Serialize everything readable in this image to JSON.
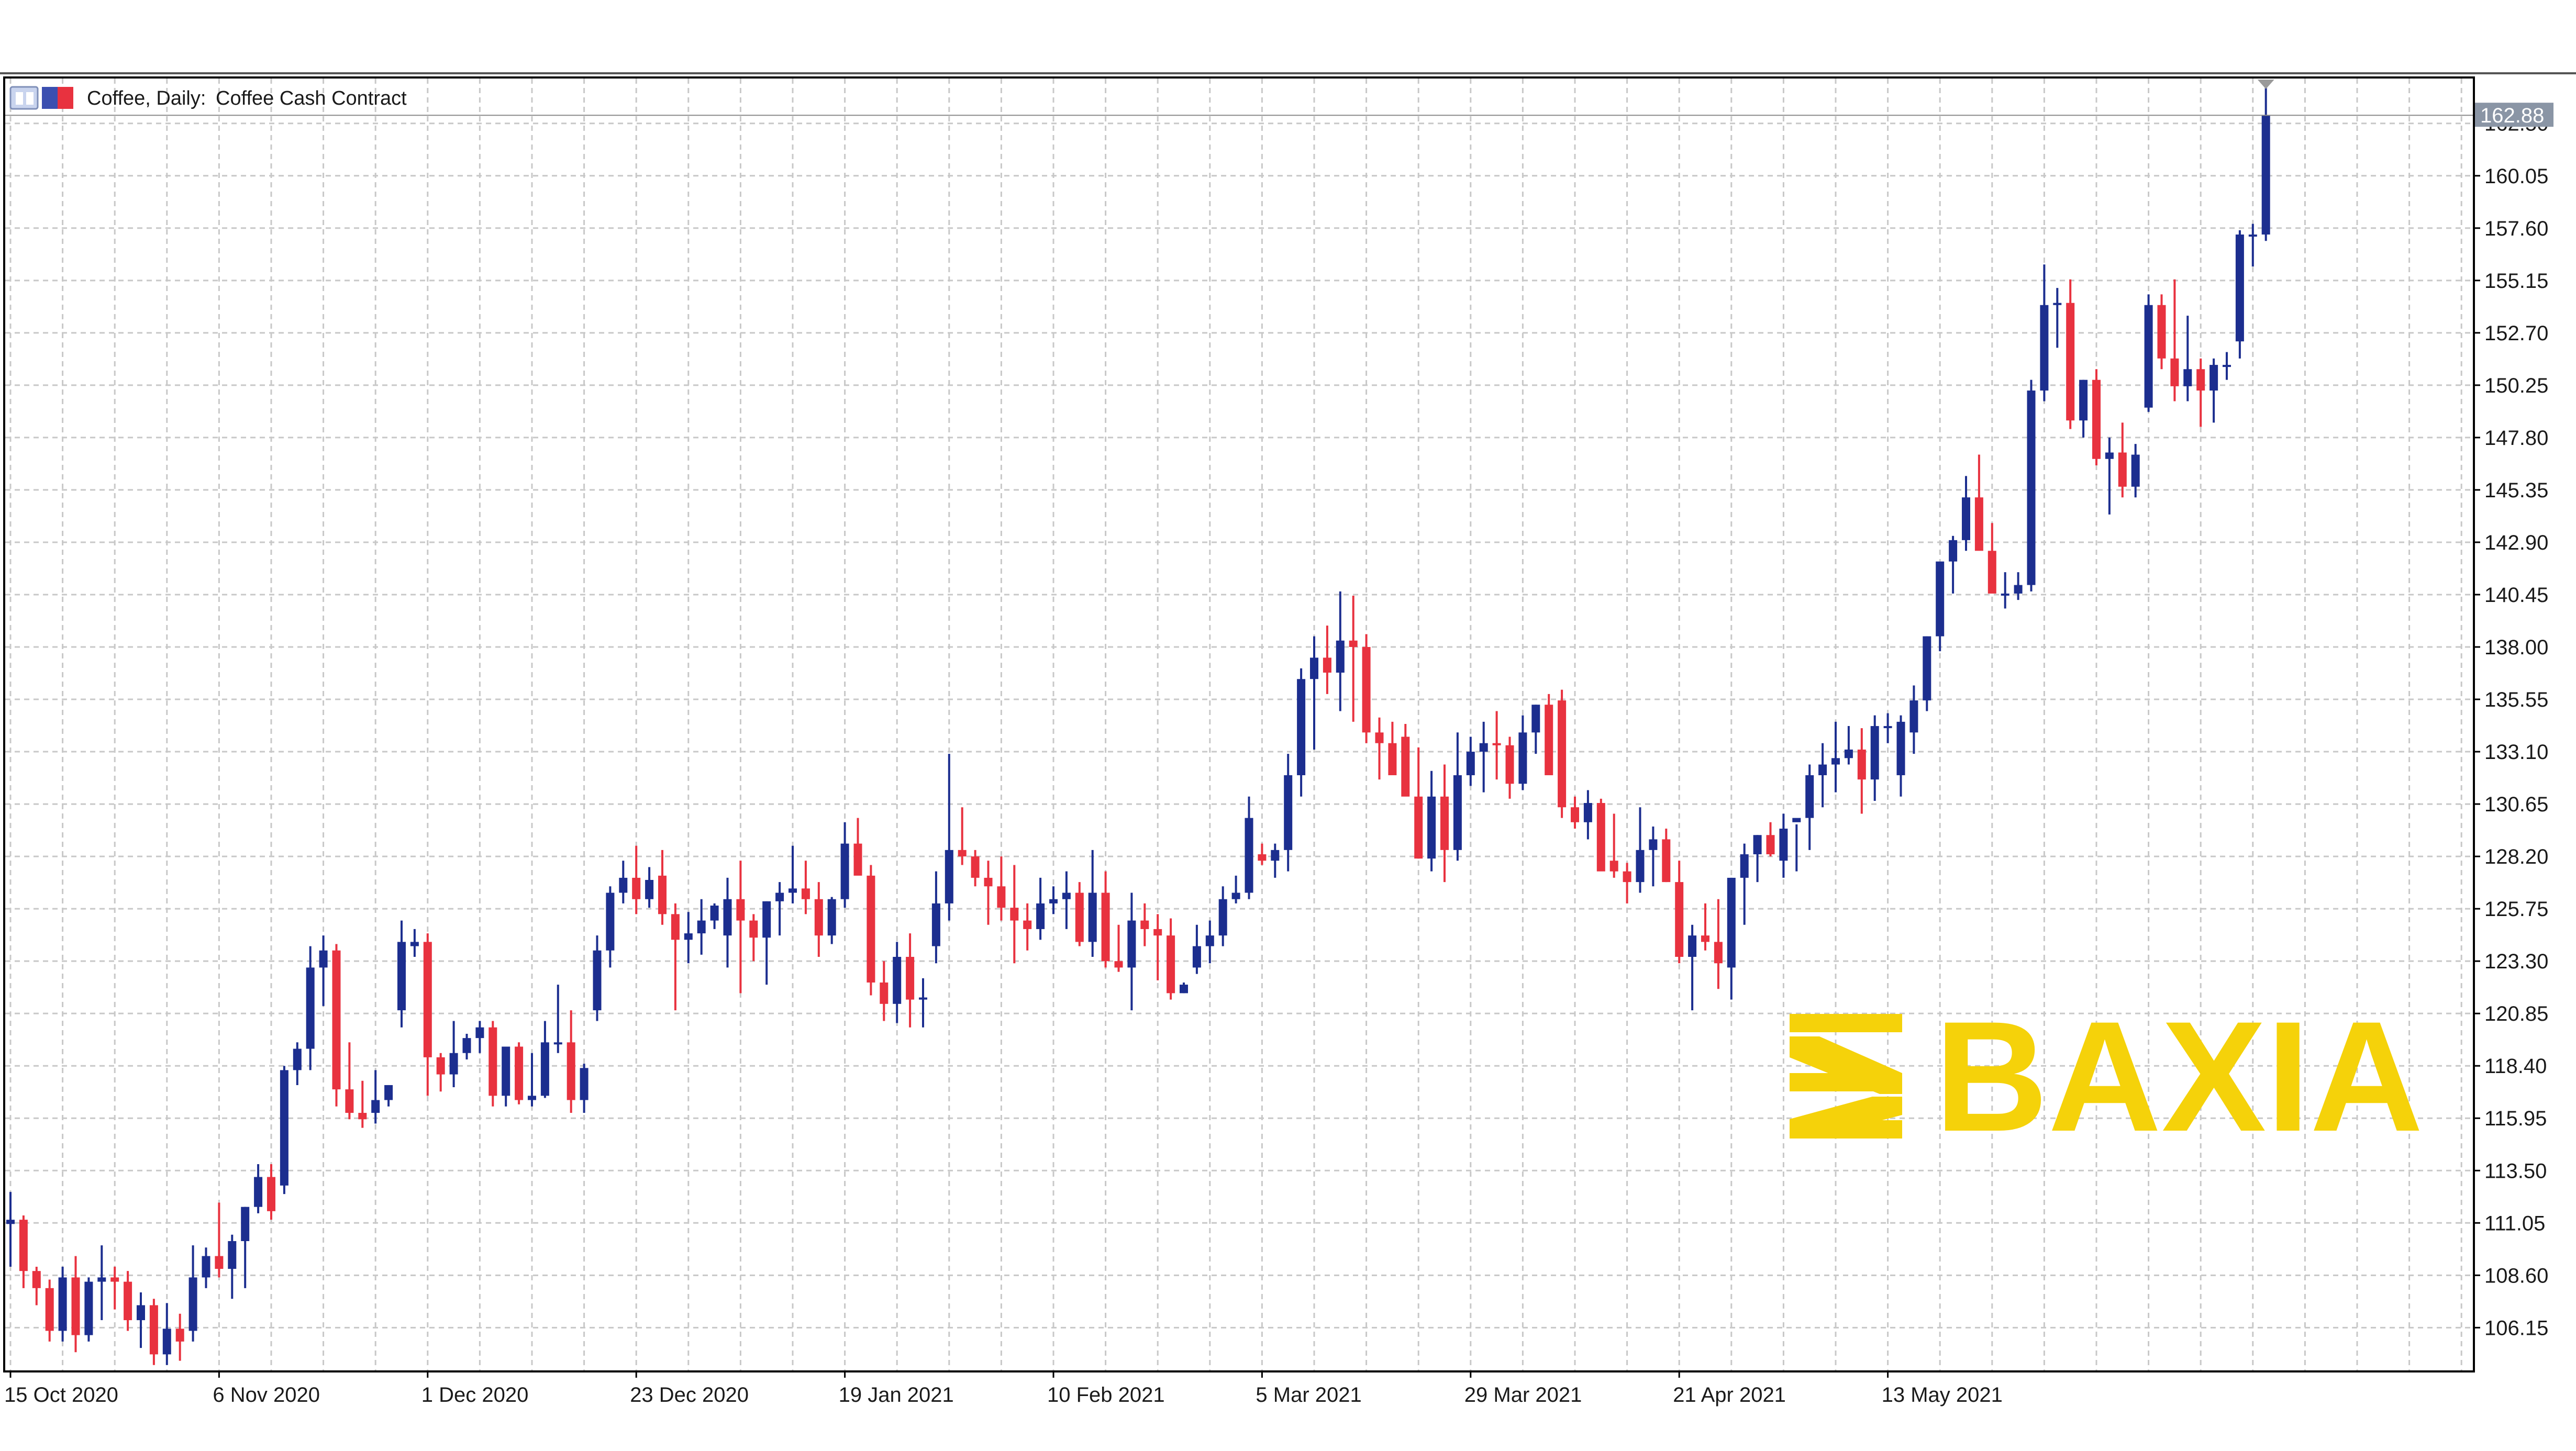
{
  "header": {
    "symbol": "Coffee, Daily:",
    "description": "Coffee Cash Contract"
  },
  "logo": {
    "text": "BAXIA",
    "color": "#f5d20a"
  },
  "colors": {
    "bull": "#1c2e8f",
    "bear": "#e8323f",
    "grid": "#c8c8c8",
    "frame": "#000000",
    "last_price_bg": "#8a95a5"
  },
  "chart_data": {
    "type": "candlestick",
    "title": "Coffee Cash Contract",
    "timeframe": "Daily",
    "ylim": [
      104.15,
      164.6
    ],
    "y_ticks": [
      "106.15",
      "108.60",
      "111.05",
      "113.50",
      "115.95",
      "118.40",
      "120.85",
      "123.30",
      "125.75",
      "128.20",
      "130.65",
      "133.10",
      "135.55",
      "138.00",
      "140.45",
      "142.90",
      "145.35",
      "147.80",
      "150.25",
      "152.70",
      "155.15",
      "157.60",
      "160.05",
      "162.50"
    ],
    "x_tick_labels": [
      "15 Oct 2020",
      "6 Nov 2020",
      "1 Dec 2020",
      "23 Dec 2020",
      "19 Jan 2021",
      "10 Feb 2021",
      "5 Mar 2021",
      "29 Mar 2021",
      "21 Apr 2021",
      "13 May 2021"
    ],
    "x_tick_bar_index": [
      0,
      16,
      32,
      48,
      64,
      80,
      96,
      112,
      128,
      144
    ],
    "last_price": "162.88",
    "grid": true,
    "bars": [
      [
        111.0,
        112.5,
        109.0,
        111.2
      ],
      [
        111.2,
        111.4,
        108.0,
        108.8
      ],
      [
        108.8,
        109.0,
        107.2,
        108.0
      ],
      [
        108.0,
        108.4,
        105.5,
        106.0
      ],
      [
        106.0,
        109.0,
        105.5,
        108.5
      ],
      [
        108.5,
        109.5,
        105.0,
        105.8
      ],
      [
        105.8,
        108.5,
        105.5,
        108.3
      ],
      [
        108.3,
        110.0,
        106.5,
        108.5
      ],
      [
        108.5,
        109.0,
        107.0,
        108.3
      ],
      [
        108.3,
        108.8,
        106.0,
        106.5
      ],
      [
        106.5,
        107.8,
        105.2,
        107.2
      ],
      [
        107.2,
        107.5,
        104.4,
        104.9
      ],
      [
        104.9,
        107.3,
        104.4,
        106.1
      ],
      [
        106.1,
        106.8,
        104.6,
        105.5
      ],
      [
        106.0,
        110.0,
        105.5,
        108.5
      ],
      [
        108.5,
        109.9,
        108.0,
        109.5
      ],
      [
        109.5,
        112.0,
        108.5,
        108.9
      ],
      [
        108.9,
        110.5,
        107.5,
        110.2
      ],
      [
        110.2,
        111.8,
        108.0,
        111.8
      ],
      [
        111.8,
        113.8,
        111.5,
        113.2
      ],
      [
        113.2,
        113.8,
        111.2,
        111.6
      ],
      [
        112.8,
        118.4,
        112.4,
        118.2
      ],
      [
        118.2,
        119.5,
        117.5,
        119.2
      ],
      [
        119.2,
        124.0,
        118.2,
        123.0
      ],
      [
        123.0,
        124.5,
        121.2,
        123.8
      ],
      [
        123.8,
        124.1,
        116.5,
        117.3
      ],
      [
        117.3,
        119.5,
        115.9,
        116.2
      ],
      [
        116.2,
        117.7,
        115.5,
        115.9
      ],
      [
        116.2,
        118.2,
        115.7,
        116.8
      ],
      [
        116.8,
        117.5,
        116.5,
        117.5
      ],
      [
        121.0,
        125.2,
        120.2,
        124.2
      ],
      [
        124.0,
        124.8,
        123.5,
        124.2
      ],
      [
        124.2,
        124.6,
        117.0,
        118.8
      ],
      [
        118.8,
        119.0,
        117.2,
        118.0
      ],
      [
        118.0,
        120.5,
        117.4,
        119.0
      ],
      [
        119.0,
        119.9,
        118.7,
        119.7
      ],
      [
        119.7,
        120.5,
        119.0,
        120.2
      ],
      [
        120.2,
        120.5,
        116.5,
        117.0
      ],
      [
        117.0,
        119.2,
        116.5,
        119.3
      ],
      [
        119.3,
        119.5,
        116.6,
        116.8
      ],
      [
        116.8,
        119.0,
        116.5,
        117.0
      ],
      [
        117.0,
        120.5,
        116.9,
        119.5
      ],
      [
        119.5,
        122.2,
        119.0,
        119.5
      ],
      [
        119.5,
        121.0,
        116.2,
        116.8
      ],
      [
        116.8,
        118.5,
        116.2,
        118.3
      ],
      [
        121.0,
        124.5,
        120.5,
        123.8
      ],
      [
        123.8,
        126.8,
        123.0,
        126.5
      ],
      [
        126.5,
        128.0,
        126.0,
        127.2
      ],
      [
        127.2,
        128.7,
        125.5,
        126.2
      ],
      [
        126.2,
        127.7,
        125.8,
        127.1
      ],
      [
        127.3,
        128.5,
        125.0,
        125.5
      ],
      [
        125.5,
        126.0,
        121.0,
        124.3
      ],
      [
        124.3,
        125.6,
        123.2,
        124.6
      ],
      [
        124.6,
        126.2,
        123.6,
        125.2
      ],
      [
        125.2,
        126.0,
        124.8,
        125.9
      ],
      [
        124.5,
        127.2,
        123.0,
        126.2
      ],
      [
        126.2,
        128.0,
        121.8,
        125.2
      ],
      [
        125.2,
        125.5,
        123.3,
        124.4
      ],
      [
        124.4,
        126.1,
        122.2,
        126.1
      ],
      [
        126.1,
        127.0,
        124.5,
        126.5
      ],
      [
        126.5,
        128.7,
        126.0,
        126.7
      ],
      [
        126.7,
        128.0,
        125.5,
        126.2
      ],
      [
        126.2,
        127.0,
        123.5,
        124.5
      ],
      [
        124.5,
        126.3,
        124.1,
        126.2
      ],
      [
        126.2,
        129.8,
        125.8,
        128.8
      ],
      [
        128.8,
        130.0,
        127.5,
        127.3
      ],
      [
        127.3,
        127.8,
        121.7,
        122.3
      ],
      [
        122.3,
        123.3,
        120.5,
        121.3
      ],
      [
        121.3,
        124.2,
        120.4,
        123.5
      ],
      [
        123.5,
        124.6,
        120.2,
        121.5
      ],
      [
        121.5,
        122.5,
        120.2,
        121.6
      ],
      [
        124.0,
        127.5,
        123.2,
        126.0
      ],
      [
        126.0,
        133.0,
        125.2,
        128.5
      ],
      [
        128.5,
        130.5,
        127.8,
        128.2
      ],
      [
        128.2,
        128.5,
        126.8,
        127.2
      ],
      [
        127.2,
        128.0,
        125.0,
        126.8
      ],
      [
        126.8,
        128.2,
        125.2,
        125.8
      ],
      [
        125.8,
        127.8,
        123.2,
        125.2
      ],
      [
        125.2,
        126.0,
        123.8,
        124.8
      ],
      [
        124.8,
        127.2,
        124.3,
        126.0
      ],
      [
        126.0,
        126.8,
        125.5,
        126.2
      ],
      [
        126.2,
        127.5,
        124.8,
        126.5
      ],
      [
        126.5,
        127.0,
        124.0,
        124.2
      ],
      [
        124.2,
        128.5,
        123.5,
        126.5
      ],
      [
        126.5,
        127.5,
        123.0,
        123.3
      ],
      [
        123.3,
        125.0,
        122.8,
        123.0
      ],
      [
        123.0,
        126.5,
        121.0,
        125.2
      ],
      [
        125.2,
        126.0,
        124.0,
        124.8
      ],
      [
        124.8,
        125.5,
        122.4,
        124.5
      ],
      [
        124.5,
        125.3,
        121.5,
        121.8
      ],
      [
        121.8,
        122.3,
        121.8,
        122.2
      ],
      [
        123.0,
        125.0,
        122.7,
        124.0
      ],
      [
        124.0,
        125.2,
        123.2,
        124.5
      ],
      [
        124.5,
        126.8,
        124.0,
        126.2
      ],
      [
        126.2,
        127.3,
        126.0,
        126.5
      ],
      [
        126.5,
        131.0,
        126.2,
        130.0
      ],
      [
        128.3,
        128.8,
        127.8,
        128.0
      ],
      [
        128.0,
        128.8,
        127.2,
        128.5
      ],
      [
        128.5,
        133.0,
        127.5,
        132.0
      ],
      [
        132.0,
        137.0,
        131.0,
        136.5
      ],
      [
        136.5,
        138.5,
        133.2,
        137.5
      ],
      [
        137.5,
        139.0,
        135.8,
        136.8
      ],
      [
        136.8,
        140.6,
        135.0,
        138.3
      ],
      [
        138.3,
        140.4,
        134.5,
        138.0
      ],
      [
        138.0,
        138.6,
        133.5,
        134.0
      ],
      [
        134.0,
        134.7,
        131.8,
        133.5
      ],
      [
        133.5,
        134.5,
        132.3,
        132.0
      ],
      [
        133.8,
        134.4,
        131.2,
        131.0
      ],
      [
        131.0,
        133.3,
        128.1,
        128.1
      ],
      [
        128.1,
        132.2,
        127.5,
        131.0
      ],
      [
        131.0,
        132.5,
        127.0,
        128.5
      ],
      [
        128.5,
        134.0,
        128.0,
        132.0
      ],
      [
        132.0,
        133.8,
        131.5,
        133.1
      ],
      [
        133.1,
        134.5,
        131.2,
        133.5
      ],
      [
        133.5,
        135.0,
        131.8,
        133.4
      ],
      [
        133.4,
        133.8,
        130.9,
        131.6
      ],
      [
        131.6,
        134.8,
        131.3,
        134.0
      ],
      [
        134.0,
        135.3,
        133.0,
        135.3
      ],
      [
        135.3,
        135.8,
        132.5,
        132.0
      ],
      [
        135.5,
        136.0,
        130.0,
        130.5
      ],
      [
        130.5,
        131.0,
        129.5,
        129.8
      ],
      [
        129.8,
        131.3,
        129.0,
        130.7
      ],
      [
        130.7,
        130.9,
        128.0,
        127.5
      ],
      [
        128.0,
        130.2,
        127.2,
        127.5
      ],
      [
        127.5,
        127.9,
        126.0,
        127.0
      ],
      [
        127.0,
        130.5,
        126.5,
        128.5
      ],
      [
        128.5,
        129.6,
        126.8,
        129.0
      ],
      [
        129.0,
        129.5,
        127.0,
        127.0
      ],
      [
        127.0,
        128.0,
        123.2,
        123.5
      ],
      [
        123.5,
        125.0,
        121.0,
        124.5
      ],
      [
        124.5,
        126.0,
        123.8,
        124.2
      ],
      [
        124.2,
        126.2,
        122.0,
        123.2
      ],
      [
        123.0,
        127.2,
        121.5,
        127.2
      ],
      [
        127.2,
        128.8,
        125.0,
        128.3
      ],
      [
        128.3,
        129.2,
        127.0,
        129.2
      ],
      [
        129.2,
        129.8,
        128.2,
        128.3
      ],
      [
        128.0,
        130.2,
        127.2,
        129.5
      ],
      [
        129.8,
        129.7,
        127.5,
        130.0
      ],
      [
        130.0,
        132.5,
        128.5,
        132.0
      ],
      [
        132.0,
        133.5,
        130.5,
        132.5
      ],
      [
        132.5,
        134.5,
        131.2,
        132.8
      ],
      [
        132.8,
        134.3,
        132.5,
        133.2
      ],
      [
        133.2,
        134.2,
        130.2,
        131.8
      ],
      [
        131.8,
        134.8,
        130.8,
        134.3
      ],
      [
        134.3,
        134.9,
        133.5,
        134.3
      ],
      [
        132.0,
        134.8,
        131.0,
        134.5
      ],
      [
        134.0,
        136.2,
        133.0,
        135.5
      ],
      [
        135.5,
        138.5,
        135.0,
        138.5
      ],
      [
        138.5,
        141.8,
        137.8,
        142.0
      ],
      [
        142.0,
        143.2,
        140.5,
        143.0
      ],
      [
        143.0,
        146.0,
        142.5,
        145.0
      ],
      [
        145.0,
        147.0,
        144.0,
        142.5
      ],
      [
        142.5,
        143.8,
        141.0,
        140.5
      ],
      [
        140.5,
        141.5,
        139.8,
        140.5
      ],
      [
        140.5,
        141.5,
        140.2,
        140.9
      ],
      [
        140.9,
        150.5,
        140.6,
        150.0
      ],
      [
        150.0,
        155.9,
        149.5,
        154.0
      ],
      [
        154.0,
        154.8,
        152.0,
        154.1
      ],
      [
        154.1,
        155.2,
        148.2,
        148.6
      ],
      [
        148.6,
        150.5,
        147.8,
        150.5
      ],
      [
        150.5,
        151.0,
        146.5,
        146.8
      ],
      [
        146.8,
        147.8,
        144.2,
        147.1
      ],
      [
        147.1,
        148.5,
        145.0,
        145.5
      ],
      [
        145.5,
        147.5,
        145.0,
        147.0
      ],
      [
        149.2,
        154.5,
        149.0,
        154.0
      ],
      [
        154.0,
        154.5,
        151.0,
        151.5
      ],
      [
        151.5,
        155.2,
        149.5,
        150.2
      ],
      [
        150.2,
        153.5,
        149.5,
        151.0
      ],
      [
        151.0,
        151.5,
        148.3,
        150.0
      ],
      [
        150.0,
        151.5,
        148.5,
        151.2
      ],
      [
        151.2,
        151.8,
        150.5,
        151.2
      ],
      [
        152.3,
        157.5,
        151.5,
        157.3
      ],
      [
        157.3,
        157.8,
        155.8,
        157.3
      ],
      [
        157.3,
        164.2,
        157.0,
        162.88
      ]
    ]
  }
}
